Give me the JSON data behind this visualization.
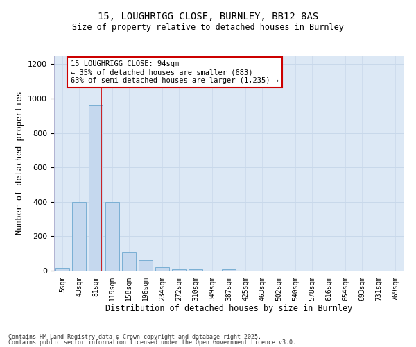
{
  "title1": "15, LOUGHRIGG CLOSE, BURNLEY, BB12 8AS",
  "title2": "Size of property relative to detached houses in Burnley",
  "xlabel": "Distribution of detached houses by size in Burnley",
  "ylabel": "Number of detached properties",
  "bar_labels": [
    "5sqm",
    "43sqm",
    "81sqm",
    "119sqm",
    "158sqm",
    "196sqm",
    "234sqm",
    "272sqm",
    "310sqm",
    "349sqm",
    "387sqm",
    "425sqm",
    "463sqm",
    "502sqm",
    "540sqm",
    "578sqm",
    "616sqm",
    "654sqm",
    "693sqm",
    "731sqm",
    "769sqm"
  ],
  "bar_values": [
    15,
    400,
    960,
    400,
    110,
    60,
    20,
    10,
    10,
    0,
    10,
    0,
    0,
    0,
    0,
    0,
    0,
    0,
    0,
    0,
    0
  ],
  "bar_color": "#c5d8ee",
  "bar_edge_color": "#7aafd4",
  "annotation_text": "15 LOUGHRIGG CLOSE: 94sqm\n← 35% of detached houses are smaller (683)\n63% of semi-detached houses are larger (1,235) →",
  "ylim": [
    0,
    1250
  ],
  "yticks": [
    0,
    200,
    400,
    600,
    800,
    1000,
    1200
  ],
  "grid_color": "#c8d8ea",
  "bg_color": "#dce8f5",
  "footnote1": "Contains HM Land Registry data © Crown copyright and database right 2025.",
  "footnote2": "Contains public sector information licensed under the Open Government Licence v3.0.",
  "red_line_x": 2.34
}
